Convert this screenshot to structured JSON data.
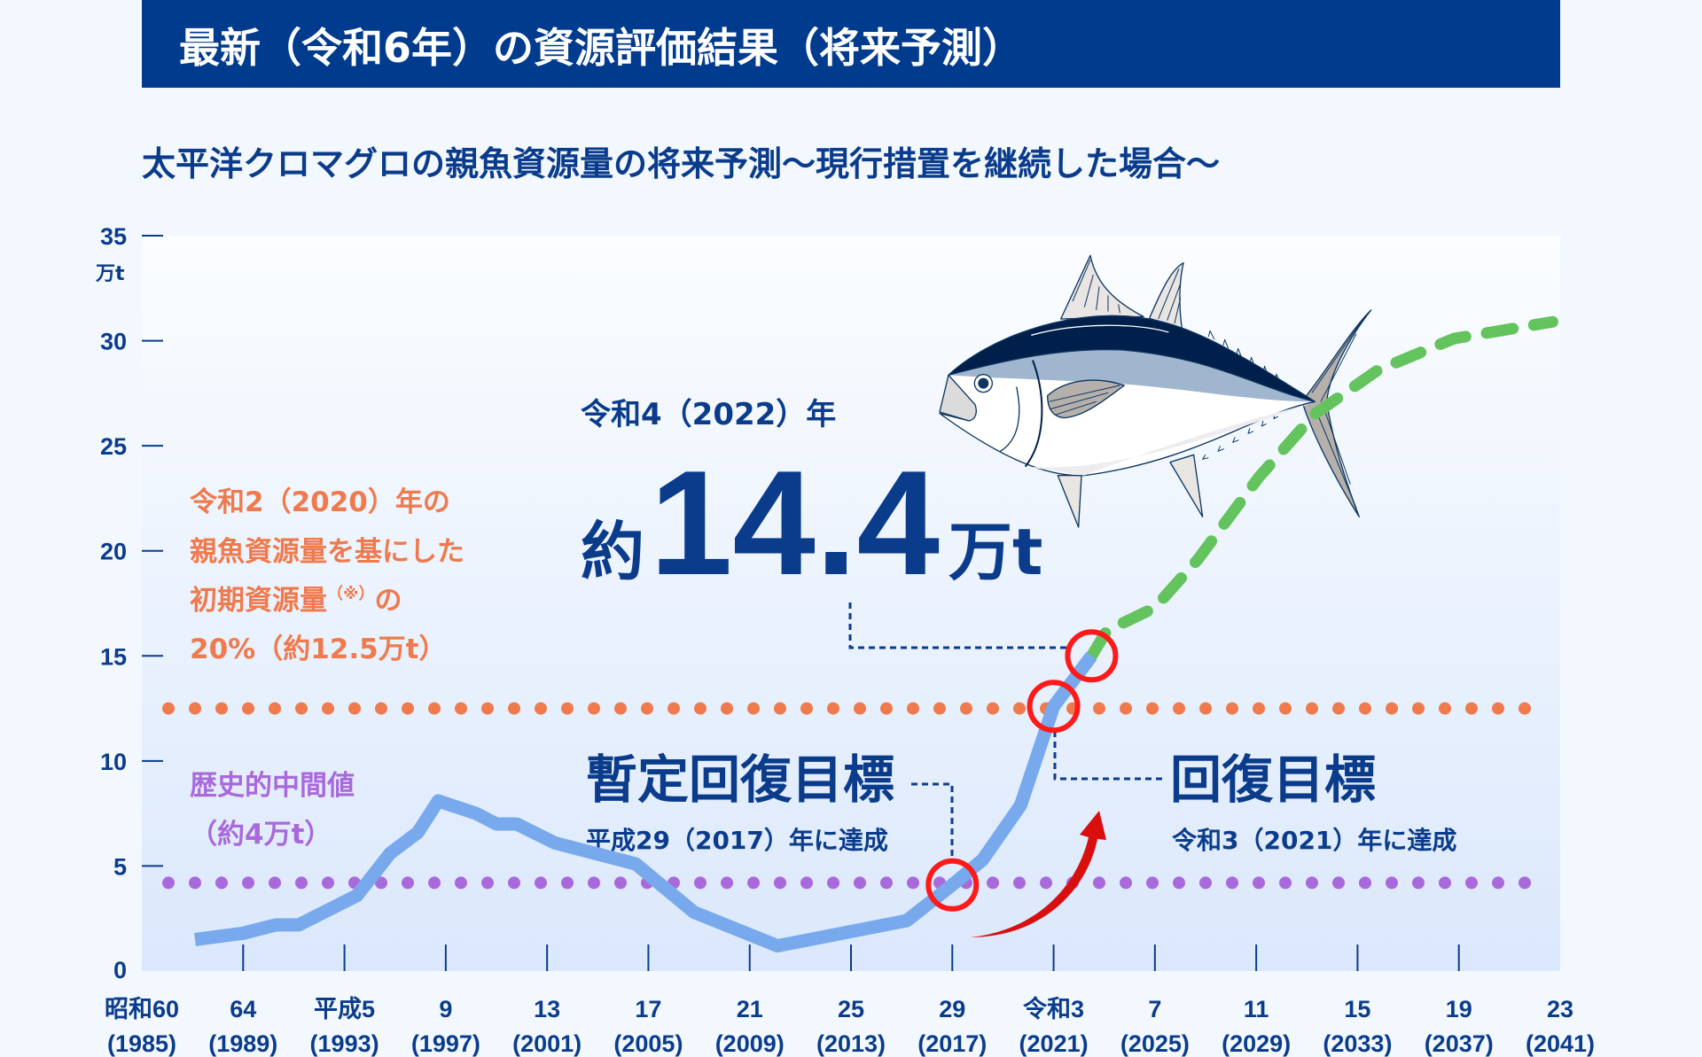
{
  "header": {
    "title": "最新（令和6年）の資源評価結果（将来予測）"
  },
  "colors": {
    "header_bg": "#003b8e",
    "navy": "#0b3c8c",
    "history_line": "#78a9ec",
    "projection_line": "#63c35d",
    "limit_line": "#ef7a4d",
    "median_line": "#a969dc",
    "highlight": "#ff1a1a"
  },
  "annotations": {
    "limit": [
      "令和2（2020）年の",
      "親魚資源量を基にした",
      "初期資源量",
      "（※）",
      "の",
      "20%（約12.5万t）"
    ],
    "median": [
      "歴史的中間値",
      "（約4万t）"
    ],
    "latest_year": "令和4（2022）年",
    "latest_prefix": "約",
    "latest_value": "14.4",
    "latest_unit": "万t",
    "interim_goal": "暫定回復目標",
    "interim_goal_note": "平成29（2017）年に達成",
    "goal": "回復目標",
    "goal_note": "令和3（2021）年に達成"
  },
  "chart_data": {
    "type": "line",
    "title": "太平洋クロマグロの親魚資源量の将来予測〜現行措置を継続した場合〜",
    "ylabel": "万t",
    "ylim": [
      0,
      35
    ],
    "yticks": [
      0,
      5,
      10,
      15,
      20,
      25,
      30,
      35
    ],
    "xlim": [
      1985,
      2041
    ],
    "xticks": [
      {
        "year": 1985,
        "label": "昭和60",
        "sub": "(1985)"
      },
      {
        "year": 1989,
        "label": "64",
        "sub": "(1989)"
      },
      {
        "year": 1993,
        "label": "平成5",
        "sub": "(1993)"
      },
      {
        "year": 1997,
        "label": "9",
        "sub": "(1997)"
      },
      {
        "year": 2001,
        "label": "13",
        "sub": "(2001)"
      },
      {
        "year": 2005,
        "label": "17",
        "sub": "(2005)"
      },
      {
        "year": 2009,
        "label": "21",
        "sub": "(2009)"
      },
      {
        "year": 2013,
        "label": "25",
        "sub": "(2013)"
      },
      {
        "year": 2017,
        "label": "29",
        "sub": "(2017)"
      },
      {
        "year": 2021,
        "label": "令和3",
        "sub": "(2021)"
      },
      {
        "year": 2025,
        "label": "7",
        "sub": "(2025)"
      },
      {
        "year": 2029,
        "label": "11",
        "sub": "(2029)"
      },
      {
        "year": 2033,
        "label": "15",
        "sub": "(2033)"
      },
      {
        "year": 2037,
        "label": "19",
        "sub": "(2037)"
      },
      {
        "year": 2041,
        "label": "23",
        "sub": "(2041)"
      }
    ],
    "series": [
      {
        "kind": "history",
        "points": [
          [
            1987.1,
            1.5
          ],
          [
            1989,
            1.8
          ],
          [
            1990.3,
            2.2
          ],
          [
            1991.2,
            2.2
          ],
          [
            1993.5,
            3.6
          ],
          [
            1994.8,
            5.6
          ],
          [
            1995.9,
            6.6
          ],
          [
            1996.7,
            8.1
          ],
          [
            1998.2,
            7.5
          ],
          [
            1999,
            7.0
          ],
          [
            1999.8,
            7.0
          ],
          [
            2001.3,
            6.1
          ],
          [
            2004.5,
            5.1
          ],
          [
            2006.8,
            2.8
          ],
          [
            2010.1,
            1.2
          ],
          [
            2015.2,
            2.4
          ],
          [
            2017,
            4.1
          ],
          [
            2018.2,
            5.3
          ],
          [
            2019.7,
            7.9
          ],
          [
            2021,
            12.6
          ],
          [
            2022.5,
            15.0
          ]
        ]
      },
      {
        "kind": "projection",
        "points": [
          [
            2022.5,
            15.0
          ],
          [
            2023.1,
            16.2
          ],
          [
            2025,
            17.3
          ],
          [
            2026.7,
            19.6
          ],
          [
            2029.1,
            23.5
          ],
          [
            2031.3,
            26.5
          ],
          [
            2033.8,
            28.6
          ],
          [
            2036.8,
            30.1
          ],
          [
            2040.7,
            30.9
          ]
        ]
      }
    ],
    "reference_lines": [
      {
        "kind": "limit",
        "value": 12.5
      },
      {
        "kind": "median",
        "value": 4.2
      }
    ],
    "highlights": [
      [
        2017,
        4.1
      ],
      [
        2021,
        12.6
      ],
      [
        2022.5,
        15.0
      ]
    ]
  }
}
